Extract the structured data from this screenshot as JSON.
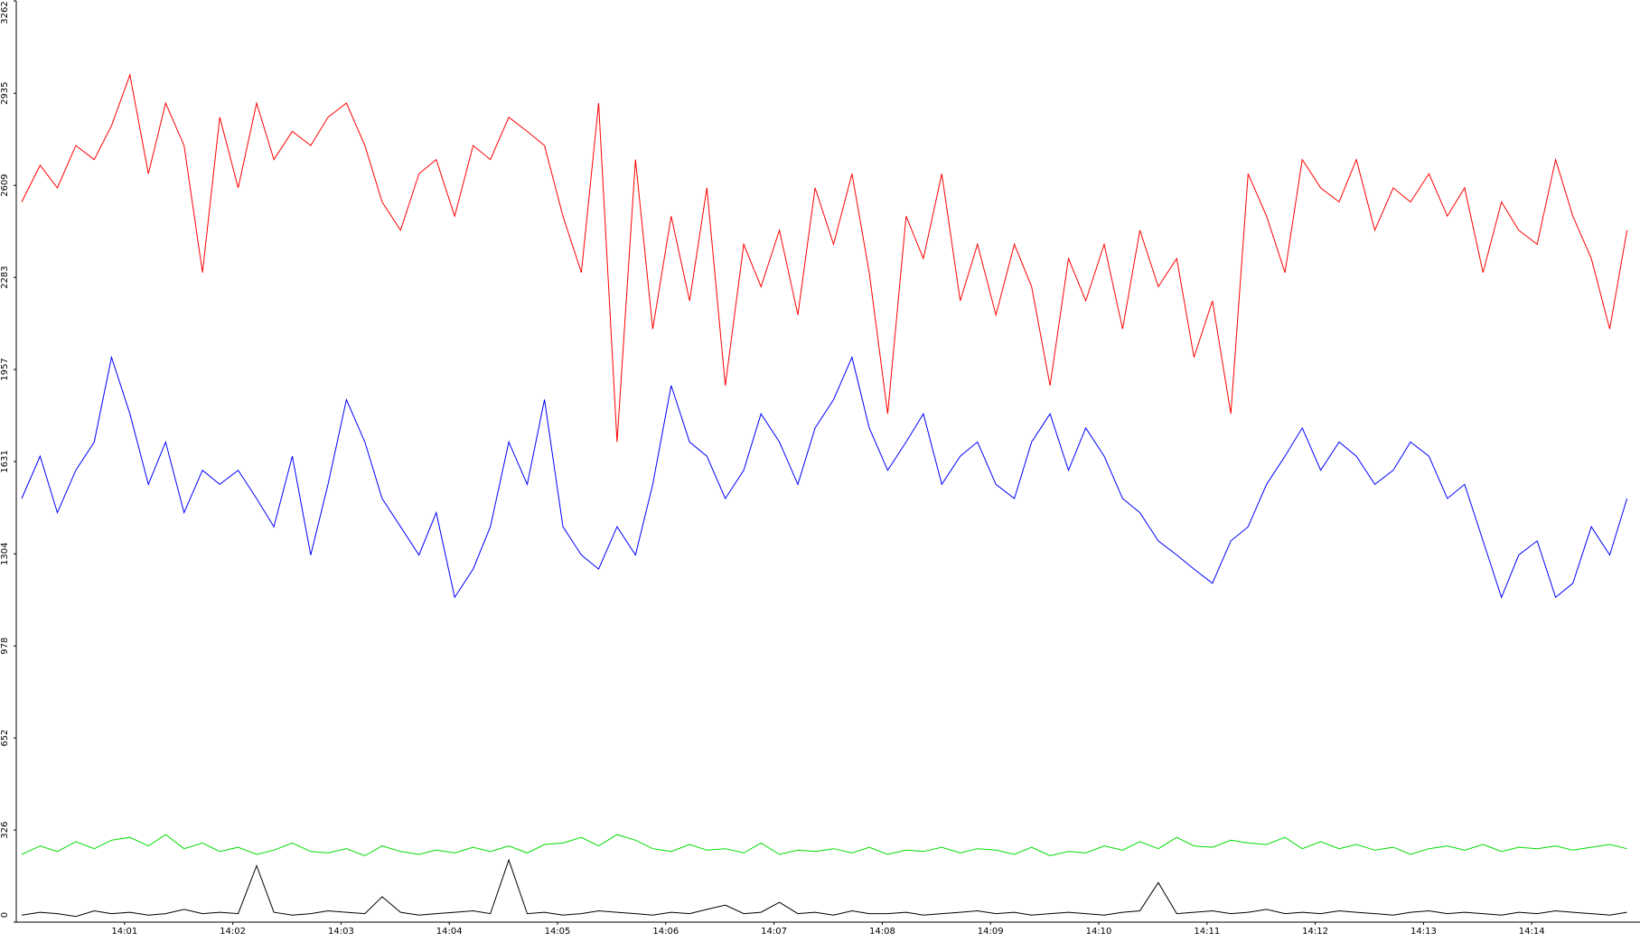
{
  "chart_data": {
    "type": "line",
    "x": [
      0.05,
      0.22,
      0.38,
      0.55,
      0.72,
      0.88,
      1.05,
      1.22,
      1.38,
      1.55,
      1.72,
      1.88,
      2.05,
      2.22,
      2.38,
      2.55,
      2.72,
      2.88,
      3.05,
      3.22,
      3.38,
      3.55,
      3.72,
      3.88,
      4.05,
      4.22,
      4.38,
      4.55,
      4.72,
      4.88,
      5.05,
      5.22,
      5.38,
      5.55,
      5.72,
      5.88,
      6.05,
      6.22,
      6.38,
      6.55,
      6.72,
      6.88,
      7.05,
      7.22,
      7.38,
      7.55,
      7.72,
      7.88,
      8.05,
      8.22,
      8.38,
      8.55,
      8.72,
      8.88,
      9.05,
      9.22,
      9.38,
      9.55,
      9.72,
      9.88,
      10.05,
      10.22,
      10.38,
      10.55,
      10.72,
      10.88,
      11.05,
      11.22,
      11.38,
      11.55,
      11.72,
      11.88,
      12.05,
      12.22,
      12.38,
      12.55,
      12.72,
      12.88,
      13.05,
      13.22,
      13.38,
      13.55,
      13.72,
      13.88,
      14.05,
      14.22,
      14.38,
      14.55,
      14.72,
      14.88
    ],
    "series": [
      {
        "color": "#ff0000",
        "values": [
          2550,
          2680,
          2600,
          2750,
          2700,
          2820,
          3000,
          2650,
          2900,
          2750,
          2300,
          2850,
          2600,
          2900,
          2700,
          2800,
          2750,
          2850,
          2900,
          2750,
          2550,
          2450,
          2650,
          2700,
          2500,
          2750,
          2700,
          2850,
          2800,
          2750,
          2500,
          2300,
          2900,
          1700,
          2700,
          2100,
          2500,
          2200,
          2600,
          1900,
          2400,
          2250,
          2450,
          2150,
          2600,
          2400,
          2650,
          2300,
          1800,
          2500,
          2350,
          2650,
          2200,
          2400,
          2150,
          2400,
          2250,
          1900,
          2350,
          2200,
          2400,
          2100,
          2450,
          2250,
          2350,
          2000,
          2200,
          1800,
          2650,
          2500,
          2300,
          2700,
          2600,
          2550,
          2700,
          2450,
          2600,
          2550,
          2650,
          2500,
          2600,
          2300,
          2550,
          2450,
          2400,
          2700,
          2500,
          2350,
          2100,
          2450
        ]
      },
      {
        "color": "#0000ff",
        "values": [
          1500,
          1650,
          1450,
          1600,
          1700,
          2000,
          1800,
          1550,
          1700,
          1450,
          1600,
          1550,
          1600,
          1500,
          1400,
          1650,
          1300,
          1550,
          1850,
          1700,
          1500,
          1400,
          1300,
          1450,
          1150,
          1250,
          1400,
          1700,
          1550,
          1850,
          1400,
          1300,
          1250,
          1400,
          1300,
          1550,
          1900,
          1700,
          1650,
          1500,
          1600,
          1800,
          1700,
          1550,
          1750,
          1850,
          2000,
          1750,
          1600,
          1700,
          1800,
          1550,
          1650,
          1700,
          1550,
          1500,
          1700,
          1800,
          1600,
          1750,
          1650,
          1500,
          1450,
          1350,
          1300,
          1250,
          1200,
          1350,
          1400,
          1550,
          1650,
          1750,
          1600,
          1700,
          1650,
          1550,
          1600,
          1700,
          1650,
          1500,
          1550,
          1350,
          1150,
          1300,
          1350,
          1150,
          1200,
          1400,
          1300,
          1500
        ]
      },
      {
        "color": "#00dd00",
        "values": [
          240,
          270,
          250,
          285,
          260,
          290,
          300,
          270,
          310,
          260,
          280,
          250,
          265,
          240,
          255,
          280,
          250,
          245,
          260,
          235,
          270,
          250,
          240,
          255,
          245,
          265,
          250,
          270,
          245,
          275,
          280,
          300,
          270,
          310,
          290,
          260,
          250,
          275,
          255,
          260,
          245,
          280,
          240,
          255,
          250,
          260,
          245,
          265,
          240,
          255,
          250,
          265,
          245,
          260,
          255,
          240,
          265,
          235,
          250,
          245,
          270,
          255,
          285,
          260,
          300,
          270,
          265,
          290,
          280,
          275,
          300,
          260,
          285,
          260,
          275,
          255,
          265,
          240,
          260,
          270,
          255,
          275,
          250,
          265,
          260,
          270,
          255,
          265,
          275,
          260
        ]
      },
      {
        "color": "#000000",
        "values": [
          25,
          35,
          30,
          20,
          40,
          30,
          35,
          25,
          30,
          45,
          30,
          35,
          30,
          200,
          35,
          25,
          30,
          40,
          35,
          30,
          90,
          35,
          25,
          30,
          35,
          40,
          30,
          220,
          30,
          35,
          25,
          30,
          40,
          35,
          30,
          25,
          35,
          30,
          45,
          60,
          30,
          35,
          70,
          30,
          35,
          25,
          40,
          30,
          30,
          35,
          25,
          30,
          35,
          40,
          30,
          35,
          25,
          30,
          35,
          30,
          25,
          35,
          40,
          140,
          30,
          35,
          40,
          30,
          35,
          45,
          30,
          35,
          30,
          40,
          35,
          30,
          25,
          35,
          40,
          30,
          35,
          30,
          25,
          35,
          30,
          40,
          35,
          30,
          25,
          35
        ]
      }
    ],
    "xlim": [
      0,
      15
    ],
    "xticks": [
      {
        "value": 1,
        "label": "14:01"
      },
      {
        "value": 2,
        "label": "14:02"
      },
      {
        "value": 3,
        "label": "14:03"
      },
      {
        "value": 4,
        "label": "14:04"
      },
      {
        "value": 5,
        "label": "14:05"
      },
      {
        "value": 6,
        "label": "14:06"
      },
      {
        "value": 7,
        "label": "14:07"
      },
      {
        "value": 8,
        "label": "14:08"
      },
      {
        "value": 9,
        "label": "14:09"
      },
      {
        "value": 10,
        "label": "14:10"
      },
      {
        "value": 11,
        "label": "14:11"
      },
      {
        "value": 12,
        "label": "14:12"
      },
      {
        "value": 13,
        "label": "14:13"
      },
      {
        "value": 14,
        "label": "14:14"
      }
    ],
    "ylim": [
      0,
      3262
    ],
    "yticks": [
      0,
      326,
      652,
      978,
      1304,
      1631,
      1957,
      2283,
      2609,
      2935,
      3262
    ]
  }
}
